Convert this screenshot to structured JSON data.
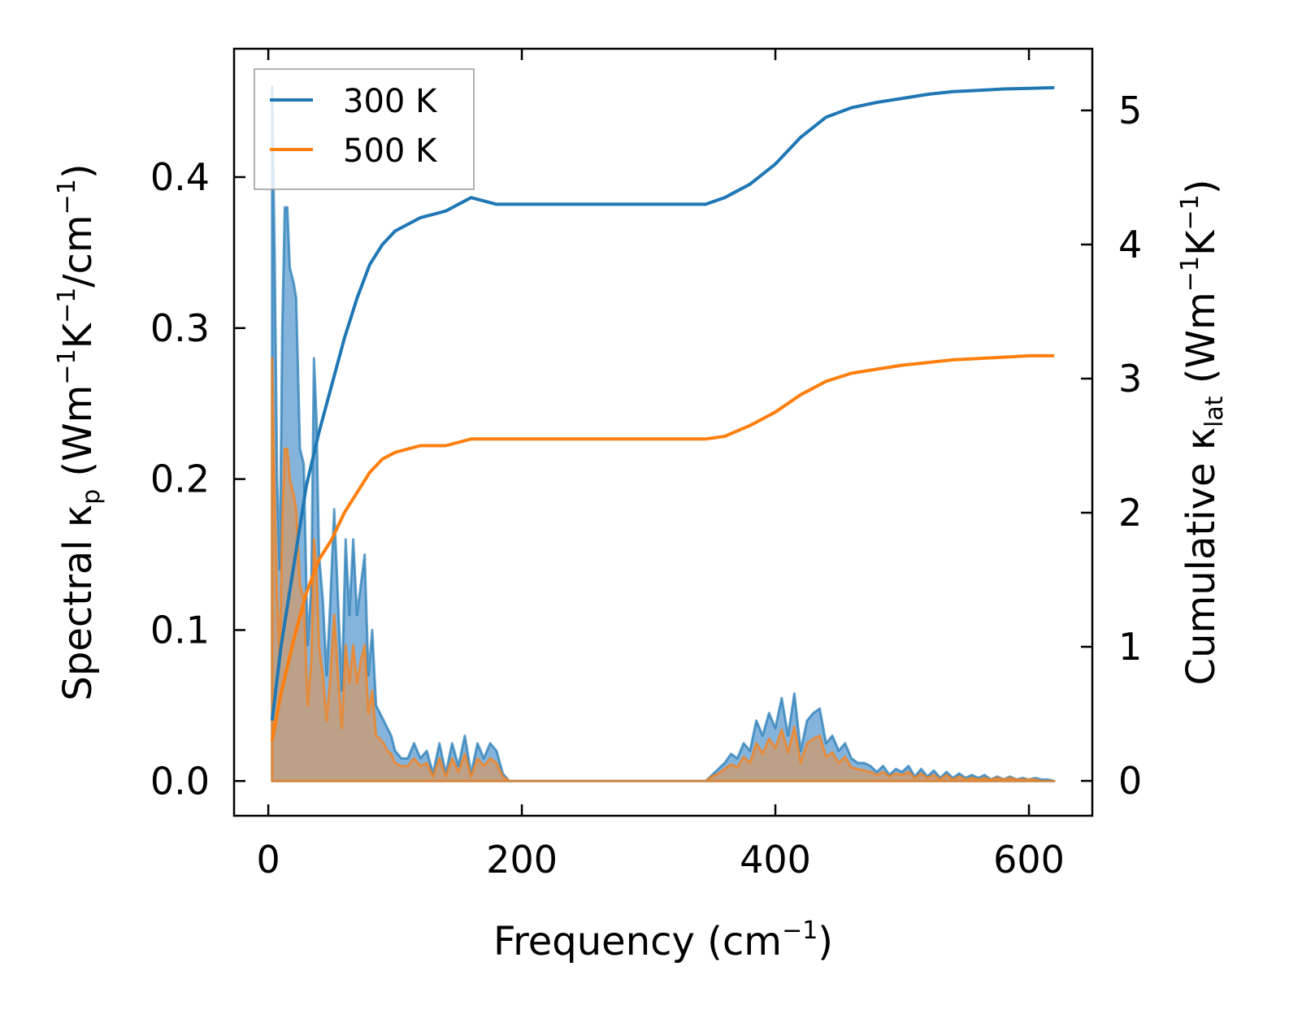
{
  "chart_data": {
    "type": "line",
    "xlabel": {
      "main": "Frequency (cm",
      "sup": "−1",
      "tail": ")"
    },
    "ylabel_left": {
      "pre": "Spectral κ",
      "sub": "p",
      "mid": " (Wm",
      "sup1": "−1",
      "k": "K",
      "sup2": "−1",
      "tail1": "/cm",
      "sup3": "−1",
      "tail2": ")"
    },
    "ylabel_right": {
      "pre": "Cumulative κ",
      "sub": "lat",
      "mid": " (Wm",
      "sup1": "−1",
      "k": "K",
      "sup2": "−1",
      "tail": ")"
    },
    "xlim": [
      -27,
      650
    ],
    "ylim_left": [
      -0.023,
      0.485
    ],
    "ylim_right": [
      -0.26,
      5.46
    ],
    "xticks": [
      0,
      200,
      400,
      600
    ],
    "yticks_left": [
      0.0,
      0.1,
      0.2,
      0.3,
      0.4
    ],
    "yticks_left_labels": [
      "0.0",
      "0.1",
      "0.2",
      "0.3",
      "0.4"
    ],
    "yticks_right": [
      0,
      1,
      2,
      3,
      4,
      5
    ],
    "yticks_right_labels": [
      "0",
      "1",
      "2",
      "3",
      "4",
      "5"
    ],
    "legend": {
      "location": "upper-left",
      "entries": [
        "300 K",
        "500 K"
      ]
    },
    "colors": {
      "s300": "#1f77b4",
      "s500": "#ff7f0e",
      "fill300": "#5b9bd0",
      "fill500": "#d09a6c"
    },
    "spectral_x": [
      3,
      5,
      7,
      9,
      11,
      13,
      15,
      17,
      20,
      22,
      25,
      28,
      31,
      34,
      36,
      38,
      40,
      43,
      46,
      49,
      52,
      55,
      58,
      61,
      64,
      67,
      70,
      73,
      76,
      79,
      82,
      85,
      88,
      91,
      94,
      97,
      100,
      105,
      110,
      115,
      120,
      125,
      130,
      135,
      140,
      145,
      150,
      155,
      160,
      165,
      170,
      175,
      180,
      185,
      190,
      195,
      200,
      250,
      300,
      345,
      350,
      355,
      360,
      365,
      370,
      375,
      380,
      385,
      390,
      395,
      400,
      405,
      410,
      415,
      420,
      425,
      430,
      435,
      440,
      445,
      450,
      455,
      460,
      465,
      470,
      475,
      480,
      485,
      490,
      495,
      500,
      505,
      510,
      515,
      520,
      525,
      530,
      535,
      540,
      545,
      550,
      555,
      560,
      565,
      570,
      575,
      580,
      585,
      590,
      595,
      600,
      605,
      610,
      615,
      620
    ],
    "spectral_300": [
      0.46,
      0.35,
      0.2,
      0.14,
      0.3,
      0.38,
      0.38,
      0.34,
      0.33,
      0.32,
      0.22,
      0.21,
      0.09,
      0.13,
      0.28,
      0.24,
      0.15,
      0.12,
      0.07,
      0.12,
      0.18,
      0.12,
      0.06,
      0.16,
      0.11,
      0.16,
      0.11,
      0.13,
      0.15,
      0.07,
      0.1,
      0.05,
      0.045,
      0.04,
      0.035,
      0.03,
      0.02,
      0.015,
      0.015,
      0.025,
      0.015,
      0.02,
      0.005,
      0.025,
      0.005,
      0.025,
      0.01,
      0.03,
      0.005,
      0.025,
      0.015,
      0.025,
      0.02,
      0.005,
      0.0,
      0.0,
      0.0,
      0.0,
      0.0,
      0.0,
      0.004,
      0.008,
      0.012,
      0.018,
      0.015,
      0.025,
      0.02,
      0.04,
      0.03,
      0.045,
      0.035,
      0.055,
      0.03,
      0.058,
      0.02,
      0.04,
      0.045,
      0.048,
      0.025,
      0.03,
      0.02,
      0.025,
      0.015,
      0.012,
      0.012,
      0.01,
      0.006,
      0.01,
      0.004,
      0.008,
      0.006,
      0.01,
      0.003,
      0.008,
      0.003,
      0.007,
      0.002,
      0.006,
      0.002,
      0.005,
      0.002,
      0.004,
      0.002,
      0.004,
      0.001,
      0.003,
      0.001,
      0.003,
      0.001,
      0.002,
      0.001,
      0.002,
      0.001,
      0.001,
      0.0
    ],
    "spectral_500": [
      0.28,
      0.19,
      0.12,
      0.08,
      0.17,
      0.22,
      0.22,
      0.2,
      0.19,
      0.18,
      0.13,
      0.12,
      0.05,
      0.08,
      0.16,
      0.14,
      0.09,
      0.07,
      0.04,
      0.07,
      0.11,
      0.07,
      0.035,
      0.09,
      0.065,
      0.09,
      0.065,
      0.08,
      0.09,
      0.045,
      0.06,
      0.03,
      0.028,
      0.025,
      0.02,
      0.018,
      0.012,
      0.01,
      0.01,
      0.015,
      0.01,
      0.012,
      0.003,
      0.015,
      0.003,
      0.015,
      0.006,
      0.018,
      0.003,
      0.015,
      0.01,
      0.015,
      0.012,
      0.003,
      0.0,
      0.0,
      0.0,
      0.0,
      0.0,
      0.0,
      0.003,
      0.005,
      0.008,
      0.011,
      0.009,
      0.016,
      0.012,
      0.025,
      0.018,
      0.028,
      0.022,
      0.034,
      0.019,
      0.036,
      0.012,
      0.025,
      0.028,
      0.03,
      0.016,
      0.019,
      0.012,
      0.016,
      0.009,
      0.008,
      0.007,
      0.006,
      0.004,
      0.006,
      0.003,
      0.005,
      0.004,
      0.006,
      0.002,
      0.005,
      0.002,
      0.004,
      0.001,
      0.004,
      0.001,
      0.003,
      0.001,
      0.002,
      0.001,
      0.002,
      0.001,
      0.002,
      0.001,
      0.002,
      0.001,
      0.001,
      0.001,
      0.001,
      0.0,
      0.0,
      0.0
    ],
    "cumulative_x": [
      3,
      10,
      20,
      30,
      40,
      50,
      60,
      70,
      80,
      90,
      100,
      120,
      140,
      160,
      180,
      190,
      200,
      250,
      300,
      345,
      360,
      380,
      400,
      420,
      440,
      460,
      480,
      500,
      520,
      540,
      560,
      580,
      600,
      620
    ],
    "cumulative_300": [
      0.45,
      1.0,
      1.6,
      2.2,
      2.6,
      2.95,
      3.3,
      3.6,
      3.85,
      4.0,
      4.1,
      4.2,
      4.25,
      4.35,
      4.3,
      4.3,
      4.3,
      4.3,
      4.3,
      4.3,
      4.35,
      4.45,
      4.6,
      4.8,
      4.95,
      5.02,
      5.06,
      5.09,
      5.12,
      5.14,
      5.15,
      5.16,
      5.165,
      5.17
    ],
    "cumulative_500": [
      0.3,
      0.65,
      1.05,
      1.4,
      1.65,
      1.8,
      2.0,
      2.15,
      2.3,
      2.4,
      2.45,
      2.5,
      2.5,
      2.55,
      2.55,
      2.55,
      2.55,
      2.55,
      2.55,
      2.55,
      2.57,
      2.65,
      2.75,
      2.88,
      2.98,
      3.04,
      3.07,
      3.1,
      3.12,
      3.14,
      3.15,
      3.16,
      3.17,
      3.17
    ]
  }
}
